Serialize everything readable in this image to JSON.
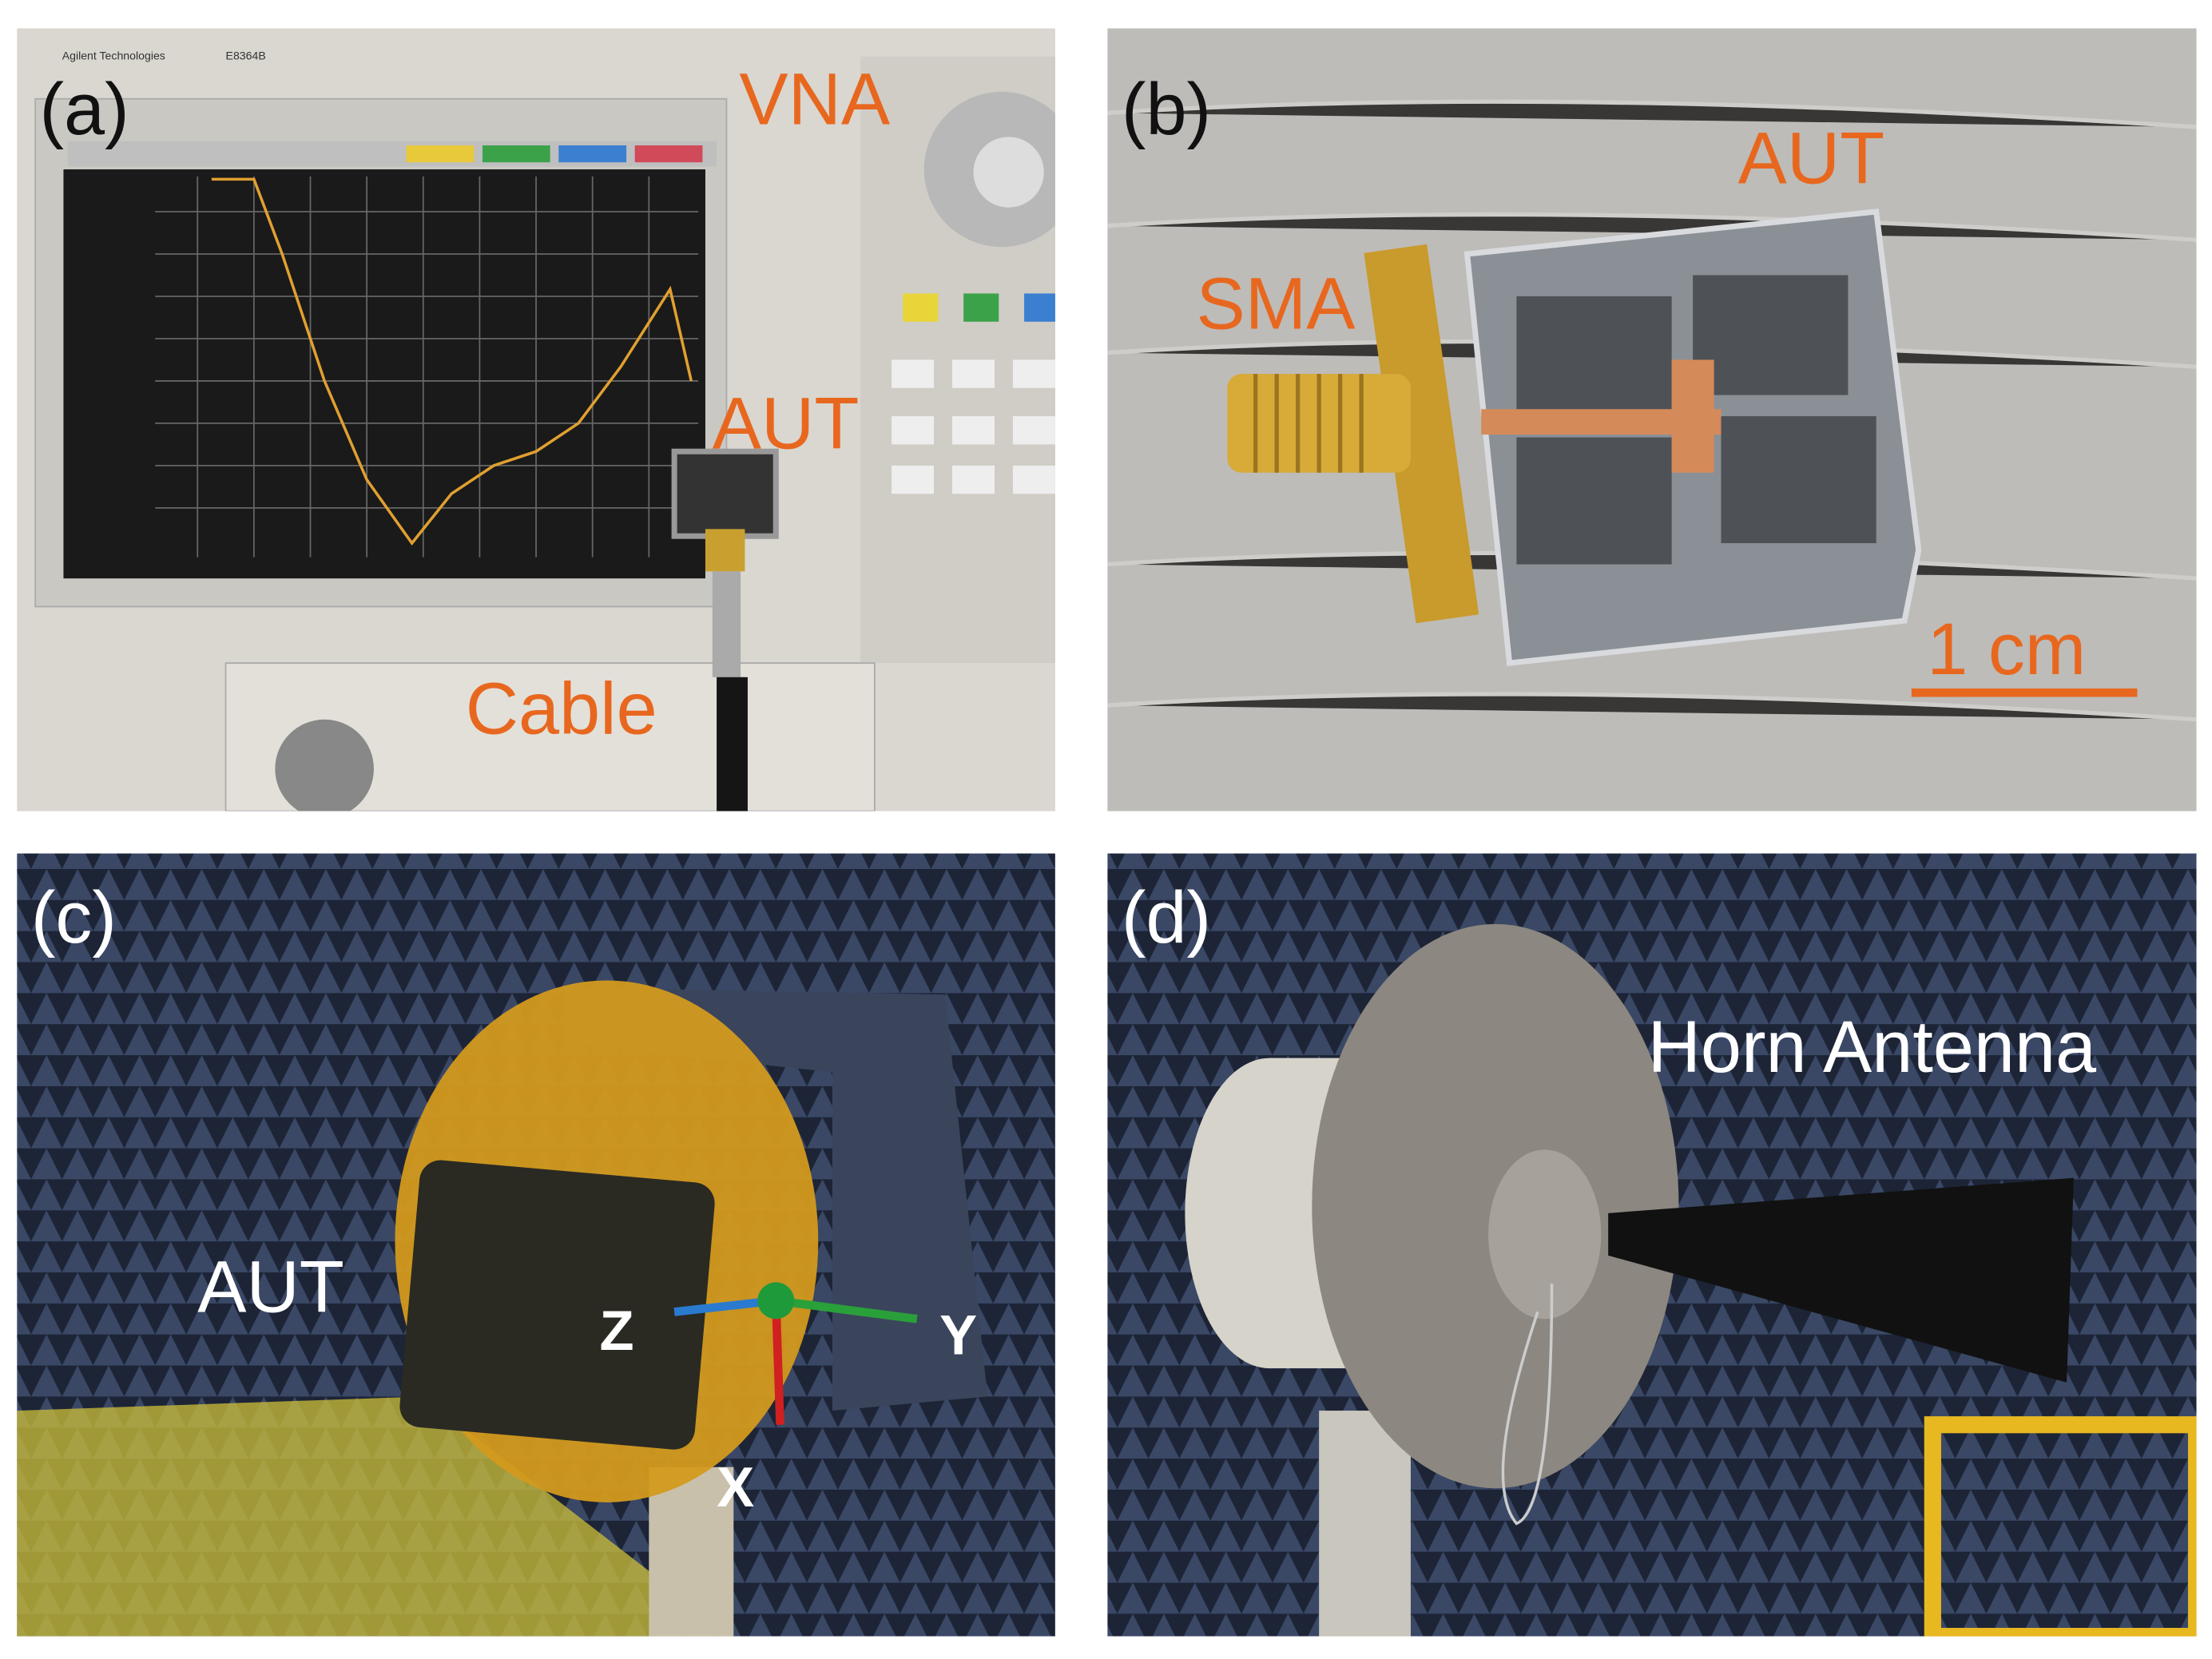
{
  "panels": [
    {
      "label": "(a)",
      "brand": "Agilent Technologies",
      "model": "E8364B",
      "annotations": [
        "VNA",
        "AUT",
        "Cable"
      ]
    },
    {
      "label": "(b)",
      "annotations": [
        "SMA",
        "AUT",
        "1 cm"
      ]
    },
    {
      "label": "(c)",
      "annotations": [
        "AUT",
        "Z",
        "Y",
        "X"
      ]
    },
    {
      "label": "(d)",
      "annotations": [
        "Horn Antenna"
      ]
    }
  ]
}
